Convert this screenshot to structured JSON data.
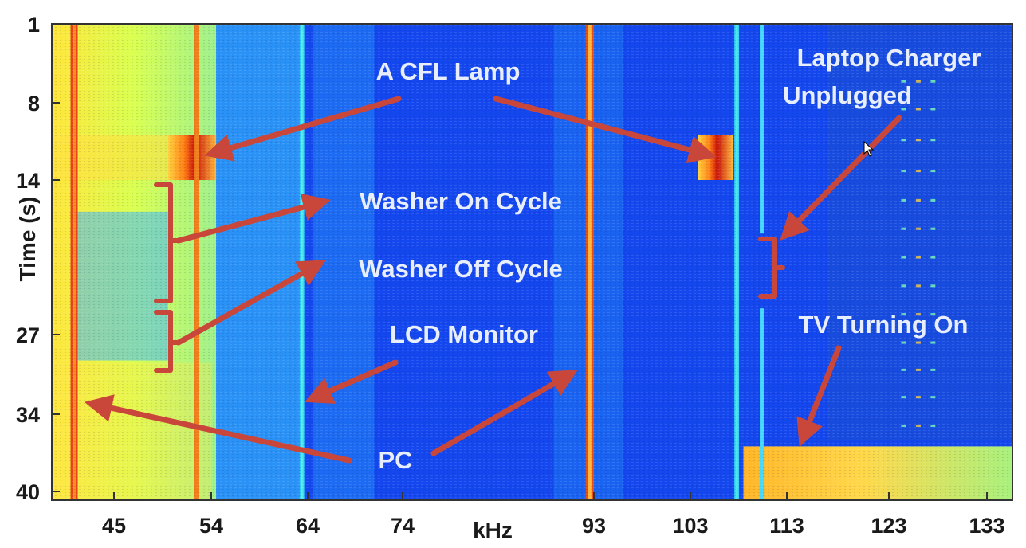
{
  "chart_data": {
    "type": "heatmap",
    "xlabel": "kHz",
    "ylabel": "Time (s)",
    "x_ticks": [
      45,
      54,
      64,
      74,
      93,
      103,
      113,
      123,
      133
    ],
    "y_ticks": [
      1,
      8,
      14,
      27,
      34,
      40
    ],
    "colormap": [
      "#0000b4",
      "#0a5aff",
      "#00c8ff",
      "#7dffb4",
      "#ffff1e",
      "#ffa000",
      "#dc1e00",
      "#8b0000"
    ],
    "background_color": "#1447ee",
    "annotation_color": "#c8473a",
    "annotations": [
      "A CFL Lamp",
      "Washer On  Cycle",
      "Washer Off  Cycle",
      "LCD Monitor",
      "PC",
      "Laptop Charger",
      "Unplugged",
      "TV Turning  On"
    ]
  }
}
